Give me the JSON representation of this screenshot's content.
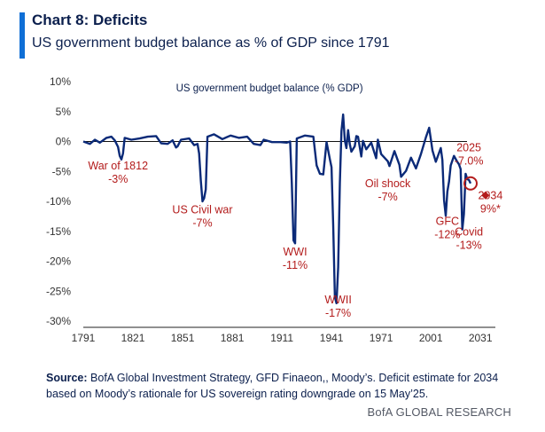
{
  "header": {
    "title": "Chart 8: Deficits",
    "subtitle": "US government budget balance as % of GDP since 1791"
  },
  "footer": {
    "source_label": "Source:",
    "source_text": "BofA Global Investment Strategy, GFD Finaeon,, Moody’s. Deficit estimate for 2034 based on Moody’s rationale for US sovereign rating downgrade on 15 May’25.",
    "brand": "BofA GLOBAL RESEARCH"
  },
  "colors": {
    "line": "#0b2a78",
    "annotation": "#b31b1b",
    "accent": "#0f6fd6",
    "text": "#0b1f4d"
  },
  "chart_data": {
    "type": "line",
    "title": "US government budget balance (% GDP)",
    "xlabel": "",
    "ylabel": "",
    "xlim": [
      1791,
      2040
    ],
    "ylim": [
      -30,
      10
    ],
    "x_ticks": [
      1791,
      1821,
      1851,
      1881,
      1911,
      1941,
      1971,
      2001,
      2031
    ],
    "y_ticks": [
      10,
      5,
      0,
      -5,
      -10,
      -15,
      -20,
      -25,
      -30
    ],
    "y_tick_labels": [
      "10%",
      "5%",
      "0%",
      "-5%",
      "-10%",
      "-15%",
      "-20%",
      "-25%",
      "-30%"
    ],
    "grid": false,
    "zero_line": true,
    "series": [
      {
        "points": [
          [
            1791,
            0.0
          ],
          [
            1795,
            -0.4
          ],
          [
            1798,
            0.3
          ],
          [
            1801,
            -0.2
          ],
          [
            1805,
            0.6
          ],
          [
            1808,
            0.8
          ],
          [
            1810,
            0.2
          ],
          [
            1812,
            -0.9
          ],
          [
            1813,
            -2.4
          ],
          [
            1814,
            -3.0
          ],
          [
            1815,
            -2.0
          ],
          [
            1816,
            0.6
          ],
          [
            1820,
            0.3
          ],
          [
            1825,
            0.5
          ],
          [
            1830,
            0.8
          ],
          [
            1835,
            0.9
          ],
          [
            1838,
            -0.3
          ],
          [
            1842,
            -0.4
          ],
          [
            1845,
            0.2
          ],
          [
            1847,
            -1.0
          ],
          [
            1848,
            -0.8
          ],
          [
            1850,
            0.3
          ],
          [
            1855,
            0.5
          ],
          [
            1858,
            -0.6
          ],
          [
            1860,
            -0.4
          ],
          [
            1861,
            -2.0
          ],
          [
            1862,
            -6.5
          ],
          [
            1863,
            -10.0
          ],
          [
            1864,
            -9.5
          ],
          [
            1865,
            -8.0
          ],
          [
            1866,
            0.8
          ],
          [
            1870,
            1.2
          ],
          [
            1875,
            0.4
          ],
          [
            1880,
            1.0
          ],
          [
            1885,
            0.6
          ],
          [
            1890,
            0.8
          ],
          [
            1894,
            -0.4
          ],
          [
            1898,
            -0.6
          ],
          [
            1900,
            0.3
          ],
          [
            1905,
            -0.1
          ],
          [
            1910,
            -0.1
          ],
          [
            1914,
            -0.2
          ],
          [
            1916,
            0.0
          ],
          [
            1917,
            -7.0
          ],
          [
            1918,
            -16.5
          ],
          [
            1919,
            -17.0
          ],
          [
            1920,
            0.5
          ],
          [
            1925,
            1.0
          ],
          [
            1930,
            0.8
          ],
          [
            1932,
            -4.0
          ],
          [
            1934,
            -5.4
          ],
          [
            1936,
            -5.5
          ],
          [
            1938,
            -0.1
          ],
          [
            1940,
            -3.0
          ],
          [
            1941,
            -4.3
          ],
          [
            1942,
            -14.0
          ],
          [
            1943,
            -26.0
          ],
          [
            1944,
            -27.0
          ],
          [
            1945,
            -21.0
          ],
          [
            1946,
            -7.0
          ],
          [
            1947,
            1.7
          ],
          [
            1948,
            4.5
          ],
          [
            1949,
            0.2
          ],
          [
            1950,
            -1.1
          ],
          [
            1951,
            1.9
          ],
          [
            1952,
            -0.4
          ],
          [
            1953,
            -1.7
          ],
          [
            1955,
            -0.8
          ],
          [
            1956,
            0.9
          ],
          [
            1957,
            0.8
          ],
          [
            1959,
            -2.5
          ],
          [
            1960,
            0.1
          ],
          [
            1962,
            -1.3
          ],
          [
            1965,
            -0.2
          ],
          [
            1968,
            -2.8
          ],
          [
            1969,
            0.3
          ],
          [
            1971,
            -2.1
          ],
          [
            1975,
            -3.3
          ],
          [
            1976,
            -4.1
          ],
          [
            1979,
            -1.6
          ],
          [
            1982,
            -3.9
          ],
          [
            1983,
            -5.9
          ],
          [
            1986,
            -4.9
          ],
          [
            1989,
            -2.7
          ],
          [
            1992,
            -4.5
          ],
          [
            1995,
            -2.1
          ],
          [
            1998,
            0.7
          ],
          [
            2000,
            2.3
          ],
          [
            2002,
            -1.5
          ],
          [
            2004,
            -3.4
          ],
          [
            2007,
            -1.1
          ],
          [
            2008,
            -3.1
          ],
          [
            2009,
            -9.8
          ],
          [
            2010,
            -12.4
          ],
          [
            2011,
            -8.4
          ],
          [
            2012,
            -6.7
          ],
          [
            2013,
            -4.0
          ],
          [
            2015,
            -2.4
          ],
          [
            2017,
            -3.4
          ],
          [
            2018,
            -3.8
          ],
          [
            2019,
            -4.6
          ],
          [
            2020,
            -14.7
          ],
          [
            2021,
            -12.1
          ],
          [
            2022,
            -5.4
          ],
          [
            2023,
            -6.3
          ],
          [
            2024,
            -6.4
          ],
          [
            2025,
            -7.0
          ]
        ]
      }
    ],
    "annotations": [
      {
        "lines": [
          "War of 1812",
          "-3%"
        ],
        "x": 1812,
        "y": -4.7
      },
      {
        "lines": [
          "US Civil war",
          "-7%"
        ],
        "x": 1863,
        "y": -12.0
      },
      {
        "lines": [
          "WWI",
          "-11%"
        ],
        "x": 1919,
        "y": -19.0
      },
      {
        "lines": [
          "WWII",
          "-17%"
        ],
        "x": 1945,
        "y": -27.0
      },
      {
        "lines": [
          "Oil shock",
          "-7%"
        ],
        "x": 1975,
        "y": -7.6
      },
      {
        "lines": [
          "GFC",
          "-12%"
        ],
        "x": 2011,
        "y": -13.9
      },
      {
        "lines": [
          "Covid",
          "-13%"
        ],
        "x": 2024,
        "y": -15.7
      },
      {
        "lines": [
          "2025",
          "-7.0%"
        ],
        "x": 2024,
        "y": -1.6
      },
      {
        "lines": [
          "2034",
          "9%*"
        ],
        "x": 2037,
        "y": -9.6
      }
    ],
    "highlight_2025": {
      "x": 2025,
      "y": -7.0
    },
    "marker_2034": {
      "x": 2034,
      "y": -9.0
    }
  }
}
